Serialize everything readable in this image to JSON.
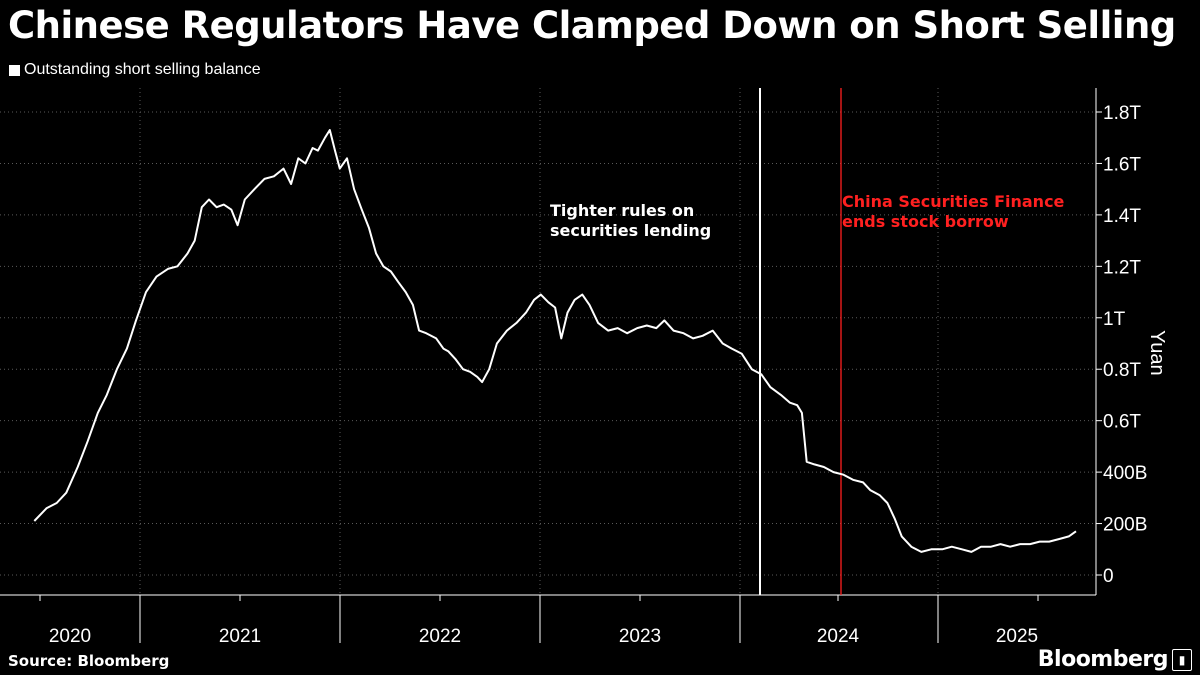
{
  "title": "Chinese Regulators Have Clamped Down on Short Selling",
  "legend": "Outstanding short selling balance",
  "source": "Source: Bloomberg",
  "brand": "Bloomberg",
  "annotations": [
    {
      "text_line1": "Tighter rules on",
      "text_line2": "securities lending",
      "color": "#ffffff"
    },
    {
      "text_line1": "China Securities Finance",
      "text_line2": "ends stock borrow",
      "color": "#ff2020"
    }
  ],
  "chart_data": {
    "type": "line",
    "title": "Chinese Regulators Have Clamped Down on Short Selling",
    "ylabel": "Yuan",
    "ylim": [
      0,
      1.9
    ],
    "xlim": [
      "2020-01-01",
      "2025-08-31"
    ],
    "grid": true,
    "legend_placement": "top-left",
    "y_ticks": [
      {
        "value": 0,
        "label": "0"
      },
      {
        "value": 0.2,
        "label": "200B"
      },
      {
        "value": 0.4,
        "label": "400B"
      },
      {
        "value": 0.6,
        "label": "0.6T"
      },
      {
        "value": 0.8,
        "label": "0.8T"
      },
      {
        "value": 1.0,
        "label": "1T"
      },
      {
        "value": 1.2,
        "label": "1.2T"
      },
      {
        "value": 1.4,
        "label": "1.4T"
      },
      {
        "value": 1.6,
        "label": "1.6T"
      },
      {
        "value": 1.8,
        "label": "1.8T"
      }
    ],
    "x_ticks": [
      "2020",
      "2021",
      "2022",
      "2023",
      "2024",
      "2025"
    ],
    "vertical_markers": [
      {
        "date": "2023-10-14",
        "color": "#ffffff"
      },
      {
        "date": "2024-01-29",
        "color": "#ff2020"
      }
    ],
    "series": [
      {
        "color": "#ffffff",
        "points": [
          [
            "2019-12-20",
            0.21
          ],
          [
            "2020-01-15",
            0.26
          ],
          [
            "2020-02-05",
            0.28
          ],
          [
            "2020-02-25",
            0.32
          ],
          [
            "2020-03-20",
            0.42
          ],
          [
            "2020-04-10",
            0.52
          ],
          [
            "2020-05-01",
            0.63
          ],
          [
            "2020-05-20",
            0.7
          ],
          [
            "2020-06-10",
            0.8
          ],
          [
            "2020-07-01",
            0.88
          ],
          [
            "2020-07-20",
            0.99
          ],
          [
            "2020-08-10",
            1.1
          ],
          [
            "2020-09-01",
            1.16
          ],
          [
            "2020-09-25",
            1.19
          ],
          [
            "2020-10-15",
            1.2
          ],
          [
            "2020-11-05",
            1.25
          ],
          [
            "2020-11-20",
            1.3
          ],
          [
            "2020-12-05",
            1.43
          ],
          [
            "2020-12-20",
            1.46
          ],
          [
            "2021-01-05",
            1.43
          ],
          [
            "2021-01-20",
            1.44
          ],
          [
            "2021-02-05",
            1.42
          ],
          [
            "2021-02-18",
            1.36
          ],
          [
            "2021-03-05",
            1.46
          ],
          [
            "2021-03-25",
            1.5
          ],
          [
            "2021-04-15",
            1.54
          ],
          [
            "2021-05-05",
            1.55
          ],
          [
            "2021-05-25",
            1.58
          ],
          [
            "2021-06-10",
            1.52
          ],
          [
            "2021-06-25",
            1.62
          ],
          [
            "2021-07-10",
            1.6
          ],
          [
            "2021-07-25",
            1.66
          ],
          [
            "2021-08-05",
            1.65
          ],
          [
            "2021-08-20",
            1.7
          ],
          [
            "2021-08-30",
            1.73
          ],
          [
            "2021-09-10",
            1.65
          ],
          [
            "2021-09-20",
            1.58
          ],
          [
            "2021-10-05",
            1.62
          ],
          [
            "2021-10-20",
            1.5
          ],
          [
            "2021-11-05",
            1.42
          ],
          [
            "2021-11-20",
            1.35
          ],
          [
            "2021-12-05",
            1.25
          ],
          [
            "2021-12-20",
            1.2
          ],
          [
            "2022-01-05",
            1.18
          ],
          [
            "2022-01-20",
            1.14
          ],
          [
            "2022-02-05",
            1.1
          ],
          [
            "2022-02-20",
            1.05
          ],
          [
            "2022-03-05",
            0.95
          ],
          [
            "2022-03-20",
            0.94
          ],
          [
            "2022-04-10",
            0.92
          ],
          [
            "2022-04-25",
            0.88
          ],
          [
            "2022-05-05",
            0.87
          ],
          [
            "2022-05-20",
            0.84
          ],
          [
            "2022-06-05",
            0.8
          ],
          [
            "2022-06-20",
            0.79
          ],
          [
            "2022-07-05",
            0.77
          ],
          [
            "2022-07-15",
            0.75
          ],
          [
            "2022-07-30",
            0.8
          ],
          [
            "2022-08-15",
            0.9
          ],
          [
            "2022-09-05",
            0.95
          ],
          [
            "2022-09-25",
            0.98
          ],
          [
            "2022-10-15",
            1.02
          ],
          [
            "2022-11-01",
            1.07
          ],
          [
            "2022-11-15",
            1.09
          ],
          [
            "2022-12-01",
            1.06
          ],
          [
            "2022-12-15",
            1.04
          ],
          [
            "2022-12-28",
            0.92
          ],
          [
            "2023-01-10",
            1.02
          ],
          [
            "2023-01-25",
            1.07
          ],
          [
            "2023-02-10",
            1.09
          ],
          [
            "2023-02-25",
            1.05
          ],
          [
            "2023-03-15",
            0.98
          ],
          [
            "2023-04-05",
            0.95
          ],
          [
            "2023-04-25",
            0.96
          ],
          [
            "2023-05-15",
            0.94
          ],
          [
            "2023-06-05",
            0.96
          ],
          [
            "2023-06-25",
            0.97
          ],
          [
            "2023-07-15",
            0.96
          ],
          [
            "2023-08-01",
            0.99
          ],
          [
            "2023-08-20",
            0.95
          ],
          [
            "2023-09-10",
            0.94
          ],
          [
            "2023-09-30",
            0.92
          ],
          [
            "2023-10-20",
            0.93
          ],
          [
            "2023-11-10",
            0.95
          ],
          [
            "2023-12-01",
            0.9
          ],
          [
            "2023-12-20",
            0.88
          ],
          [
            "2024-01-10",
            0.86
          ],
          [
            "2024-01-31",
            0.8
          ],
          [
            "2024-02-20",
            0.78
          ],
          [
            "2024-03-10",
            0.73
          ],
          [
            "2024-04-01",
            0.7
          ],
          [
            "2024-04-20",
            0.67
          ],
          [
            "2024-05-05",
            0.66
          ],
          [
            "2024-05-15",
            0.63
          ],
          [
            "2024-05-25",
            0.44
          ],
          [
            "2024-06-10",
            0.43
          ],
          [
            "2024-06-30",
            0.42
          ],
          [
            "2024-07-20",
            0.4
          ],
          [
            "2024-08-10",
            0.39
          ],
          [
            "2024-08-30",
            0.37
          ],
          [
            "2024-09-20",
            0.36
          ],
          [
            "2024-10-05",
            0.33
          ],
          [
            "2024-10-25",
            0.31
          ],
          [
            "2024-11-10",
            0.28
          ],
          [
            "2024-11-25",
            0.22
          ],
          [
            "2024-12-10",
            0.15
          ],
          [
            "2024-12-30",
            0.11
          ],
          [
            "2025-01-20",
            0.09
          ],
          [
            "2025-02-10",
            0.1
          ],
          [
            "2025-03-05",
            0.1
          ],
          [
            "2025-03-25",
            0.11
          ],
          [
            "2025-04-15",
            0.1
          ],
          [
            "2025-05-05",
            0.09
          ],
          [
            "2025-05-25",
            0.11
          ],
          [
            "2025-06-15",
            0.11
          ],
          [
            "2025-07-05",
            0.12
          ],
          [
            "2025-07-25",
            0.11
          ],
          [
            "2025-08-15",
            0.12
          ],
          [
            "2025-09-05",
            0.12
          ],
          [
            "2025-09-25",
            0.13
          ],
          [
            "2025-10-15",
            0.13
          ],
          [
            "2025-11-05",
            0.14
          ],
          [
            "2025-11-25",
            0.15
          ],
          [
            "2025-12-10",
            0.17
          ]
        ]
      }
    ]
  }
}
